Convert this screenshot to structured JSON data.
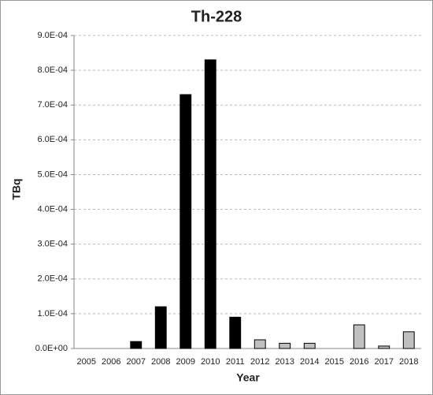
{
  "chart_data": {
    "type": "bar",
    "title": "Th-228",
    "x_label": "Year",
    "y_label": "TBq",
    "categories": [
      "2005",
      "2006",
      "2007",
      "2008",
      "2009",
      "2010",
      "2011",
      "2012",
      "2013",
      "2014",
      "2015",
      "2016",
      "2017",
      "2018"
    ],
    "values": [
      0,
      0,
      2e-05,
      0.00012,
      0.00073,
      0.00083,
      9e-05,
      2.5e-05,
      1.5e-05,
      1.5e-05,
      0,
      6.8e-05,
      7e-06,
      4.8e-05
    ],
    "colors": [
      "#000000",
      "#000000",
      "#000000",
      "#000000",
      "#000000",
      "#000000",
      "#000000",
      "#c0c0c0",
      "#c0c0c0",
      "#c0c0c0",
      "#c0c0c0",
      "#c0c0c0",
      "#c0c0c0",
      "#c0c0c0"
    ],
    "ylim": [
      0,
      0.0009
    ],
    "yticks": [
      {
        "value": 0,
        "label": "0.0E+00"
      },
      {
        "value": 0.0001,
        "label": "1.0E-04"
      },
      {
        "value": 0.0002,
        "label": "2.0E-04"
      },
      {
        "value": 0.0003,
        "label": "3.0E-04"
      },
      {
        "value": 0.0004,
        "label": "4.0E-04"
      },
      {
        "value": 0.0005,
        "label": "5.0E-04"
      },
      {
        "value": 0.0006,
        "label": "6.0E-04"
      },
      {
        "value": 0.0007,
        "label": "7.0E-04"
      },
      {
        "value": 0.0008,
        "label": "8.0E-04"
      },
      {
        "value": 0.0009,
        "label": "9.0E-04"
      }
    ],
    "grid": true
  }
}
